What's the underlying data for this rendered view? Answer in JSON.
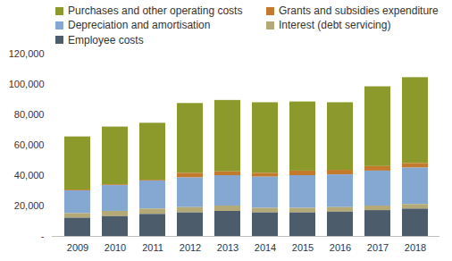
{
  "chart_data": {
    "type": "bar",
    "stacked": true,
    "grid": false,
    "legend": "top",
    "categories": [
      "2009",
      "2010",
      "2011",
      "2012",
      "2013",
      "2014",
      "2015",
      "2016",
      "2017",
      "2018"
    ],
    "series": [
      {
        "name": "Purchases and other operating costs",
        "color": "#8c9a2c",
        "values": [
          35000,
          38000,
          37500,
          46000,
          47000,
          46500,
          45500,
          44500,
          52500,
          56500
        ]
      },
      {
        "name": "Grants and subsidies expenditure",
        "color": "#c47a2c",
        "values": [
          500,
          500,
          500,
          3000,
          2500,
          2500,
          3000,
          3000,
          3000,
          3000
        ]
      },
      {
        "name": "Depreciation and amortisation",
        "color": "#84a8d2",
        "values": [
          15000,
          17000,
          18500,
          19500,
          20000,
          20500,
          21500,
          21500,
          23000,
          24000
        ]
      },
      {
        "name": "Interest (debt servicing)",
        "color": "#b3aa78",
        "values": [
          3000,
          3500,
          3500,
          3500,
          3500,
          3000,
          3000,
          3000,
          3000,
          3000
        ]
      },
      {
        "name": "Employee costs",
        "color": "#4d5c6b",
        "values": [
          12000,
          13000,
          14500,
          15500,
          16500,
          15500,
          15500,
          16000,
          17000,
          18000
        ]
      }
    ],
    "ylim": [
      0,
      120000
    ],
    "yticks": [
      {
        "value": 0,
        "label": "-"
      },
      {
        "value": 20000,
        "label": "20,000"
      },
      {
        "value": 40000,
        "label": "40,000"
      },
      {
        "value": 60000,
        "label": "60,000"
      },
      {
        "value": 80000,
        "label": "80,000"
      },
      {
        "value": 100000,
        "label": "100,000"
      },
      {
        "value": 120000,
        "label": "120,000"
      }
    ]
  }
}
